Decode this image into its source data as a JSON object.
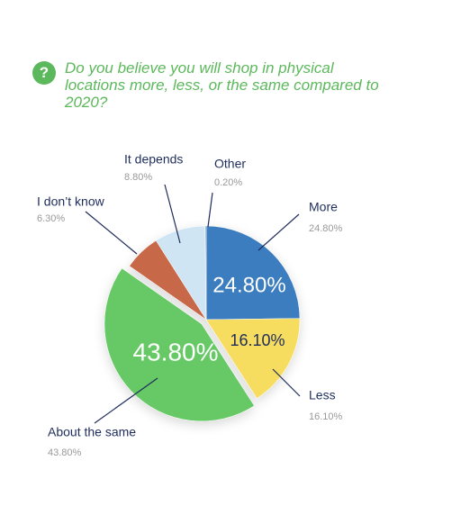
{
  "chart_data": {
    "type": "pie",
    "title": "Do you believe you will shop in physical locations more, less, or the same compared to 2020?",
    "categories": [
      "More",
      "Less",
      "About the same",
      "I don’t know",
      "It depends",
      "Other"
    ],
    "values": [
      24.8,
      16.1,
      43.8,
      6.3,
      8.8,
      0.2
    ],
    "value_labels": [
      "24.80%",
      "16.10%",
      "43.80%",
      "6.30%",
      "8.80%",
      "0.20%"
    ],
    "colors": [
      "#3a7dbf",
      "#f6dd5e",
      "#66c966",
      "#c7684a",
      "#cfe5f3",
      "#8fa8bf"
    ]
  }
}
